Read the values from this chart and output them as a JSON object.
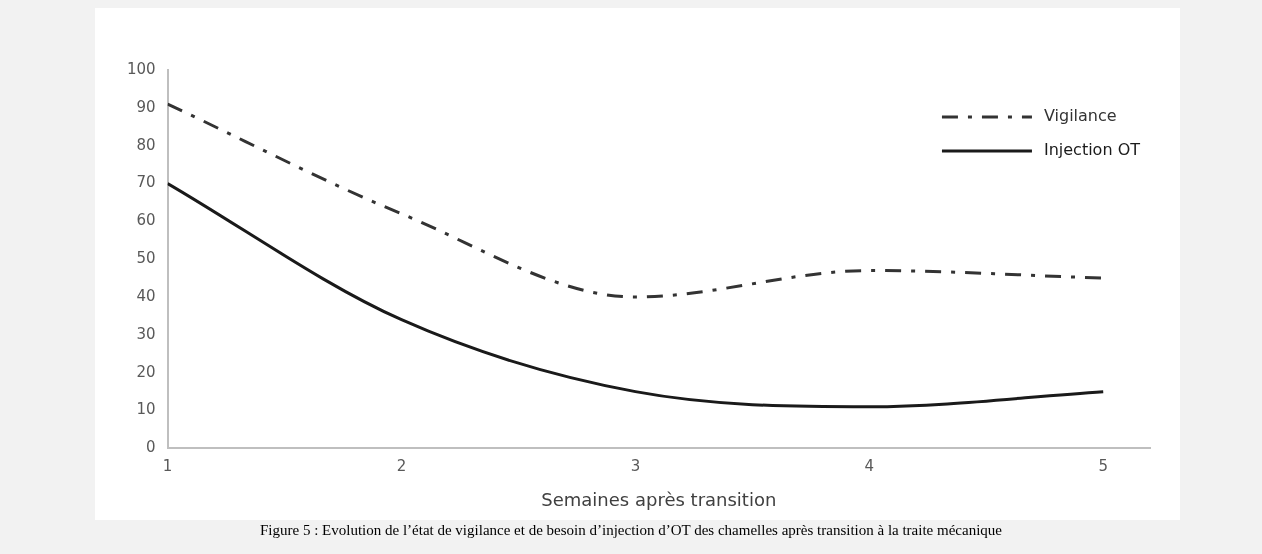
{
  "chart_data": {
    "type": "line",
    "xlabel": "Semaines après transition",
    "x": [
      1,
      2,
      3,
      4,
      5
    ],
    "xlim": [
      1,
      5.2
    ],
    "xticks": [
      1,
      2,
      3,
      4,
      5
    ],
    "ylim": [
      0,
      100
    ],
    "yticks": [
      0,
      10,
      20,
      30,
      40,
      50,
      60,
      70,
      80,
      90,
      100
    ],
    "grid": false,
    "legend": "top right",
    "marker": "none",
    "series": [
      {
        "name": "Vigilance",
        "color": "#333333",
        "line_style": "dashed",
        "values": [
          91,
          62,
          40,
          47,
          45
        ]
      },
      {
        "name": "Injection OT",
        "color": "#1a1a1a",
        "line_style": "solid",
        "values": [
          70,
          34,
          15,
          11,
          15
        ]
      }
    ],
    "annotations": [
      "Figure 5 : Evolution de l’état de vigilance et de besoin d’injection d’OT des chamelles après transition à la traite mécanique"
    ]
  }
}
